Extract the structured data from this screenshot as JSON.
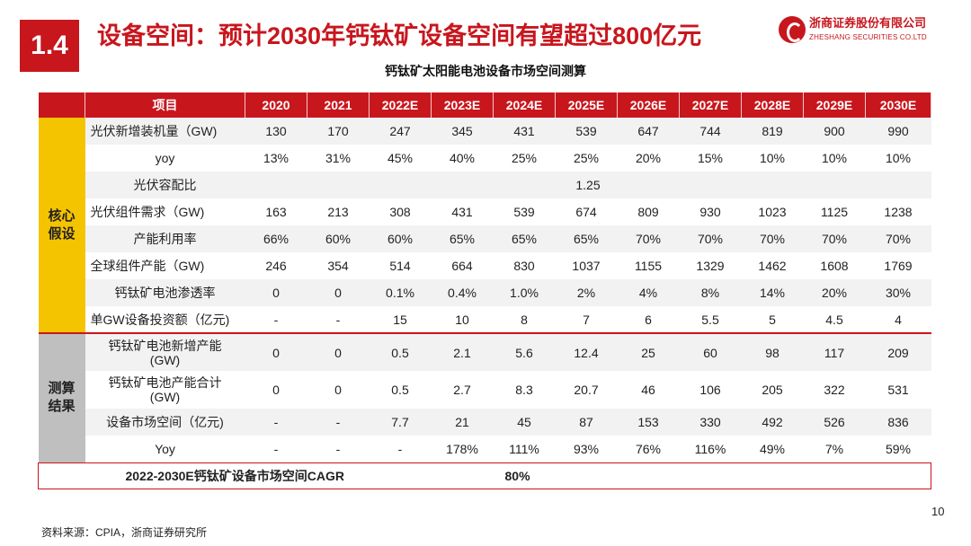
{
  "header": {
    "section_number": "1.4",
    "title": "设备空间：预计2030年钙钛矿设备空间有望超过800亿元",
    "logo_cn": "浙商证券股份有限公司",
    "logo_en": "ZHESHANG SECURITIES CO.LTD"
  },
  "table": {
    "title": "钙钛矿太阳能电池设备市场空间测算",
    "header_item": "项目",
    "years": [
      "2020",
      "2021",
      "2022E",
      "2023E",
      "2024E",
      "2025E",
      "2026E",
      "2027E",
      "2028E",
      "2029E",
      "2030E"
    ],
    "groups": {
      "core": "核心\n假设",
      "result": "测算\n结果"
    },
    "rows": [
      {
        "label": "光伏新增装机量（GW)",
        "values": [
          "130",
          "170",
          "247",
          "345",
          "431",
          "539",
          "647",
          "744",
          "819",
          "900",
          "990"
        ]
      },
      {
        "label": "yoy",
        "values": [
          "13%",
          "31%",
          "45%",
          "40%",
          "25%",
          "25%",
          "20%",
          "15%",
          "10%",
          "10%",
          "10%"
        ]
      },
      {
        "label": "光伏容配比",
        "merged_value": "1.25"
      },
      {
        "label": "光伏组件需求（GW)",
        "values": [
          "163",
          "213",
          "308",
          "431",
          "539",
          "674",
          "809",
          "930",
          "1023",
          "1125",
          "1238"
        ]
      },
      {
        "label": "产能利用率",
        "values": [
          "66%",
          "60%",
          "60%",
          "65%",
          "65%",
          "65%",
          "70%",
          "70%",
          "70%",
          "70%",
          "70%"
        ]
      },
      {
        "label": "全球组件产能（GW)",
        "values": [
          "246",
          "354",
          "514",
          "664",
          "830",
          "1037",
          "1155",
          "1329",
          "1462",
          "1608",
          "1769"
        ]
      },
      {
        "label": "钙钛矿电池渗透率",
        "values": [
          "0",
          "0",
          "0.1%",
          "0.4%",
          "1.0%",
          "2%",
          "4%",
          "8%",
          "14%",
          "20%",
          "30%"
        ]
      },
      {
        "label": "单GW设备投资额（亿元)",
        "values": [
          "-",
          "-",
          "15",
          "10",
          "8",
          "7",
          "6",
          "5.5",
          "5",
          "4.5",
          "4"
        ]
      },
      {
        "label": "钙钛矿电池新增产能\n(GW)",
        "values": [
          "0",
          "0",
          "0.5",
          "2.1",
          "5.6",
          "12.4",
          "25",
          "60",
          "98",
          "117",
          "209"
        ]
      },
      {
        "label": "钙钛矿电池产能合计\n(GW)",
        "values": [
          "0",
          "0",
          "0.5",
          "2.7",
          "8.3",
          "20.7",
          "46",
          "106",
          "205",
          "322",
          "531"
        ]
      },
      {
        "label": "设备市场空间（亿元)",
        "values": [
          "-",
          "-",
          "7.7",
          "21",
          "45",
          "87",
          "153",
          "330",
          "492",
          "526",
          "836"
        ]
      },
      {
        "label": "Yoy",
        "values": [
          "-",
          "-",
          "-",
          "178%",
          "111%",
          "93%",
          "76%",
          "116%",
          "49%",
          "7%",
          "59%"
        ]
      }
    ],
    "cagr": {
      "label": "2022-2030E钙钛矿设备市场空间CAGR",
      "value": "80%"
    }
  },
  "footer": {
    "page_number": "10",
    "source": "资料来源：CPIA，浙商证券研究所"
  }
}
